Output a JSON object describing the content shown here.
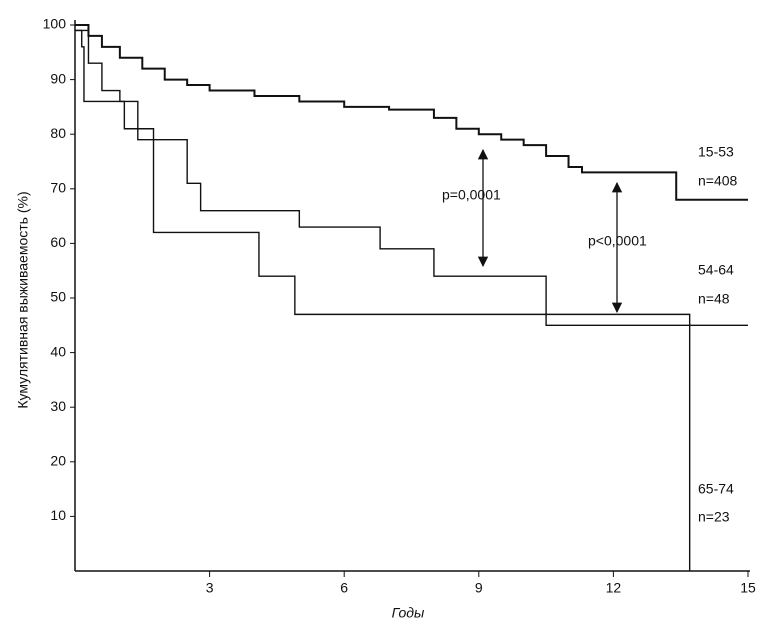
{
  "chart_data": {
    "type": "line",
    "step": true,
    "xlabel": "Годы",
    "ylabel": "Кумулятивная выживаемость (%)",
    "xlim": [
      0,
      15
    ],
    "xticks": [
      3,
      6,
      9,
      12,
      15
    ],
    "ylim": [
      0,
      100
    ],
    "yticks": [
      10,
      20,
      30,
      40,
      50,
      60,
      70,
      80,
      90,
      100
    ],
    "series": [
      {
        "name": "15-53",
        "color": "#111111",
        "x": [
          0,
          0.3,
          0.6,
          1,
          1.5,
          2,
          2.5,
          3,
          4,
          5,
          6,
          7,
          8,
          8.5,
          9,
          9.5,
          10,
          10.5,
          11,
          11.3,
          13.4,
          15
        ],
        "values": [
          100,
          98,
          96,
          94,
          92,
          90,
          89,
          88,
          87,
          86,
          85,
          84.5,
          83,
          81,
          80,
          79,
          78,
          76,
          74,
          73,
          68,
          68
        ]
      },
      {
        "name": "54-64",
        "color": "#111111",
        "x": [
          0,
          0.3,
          0.6,
          1,
          1.4,
          2.5,
          2.8,
          5,
          6.8,
          8,
          10.5,
          15
        ],
        "values": [
          99,
          93,
          88,
          86,
          79,
          71,
          66,
          63,
          59,
          54,
          45,
          45
        ]
      },
      {
        "name": "65-74",
        "color": "#111111",
        "x": [
          0,
          0.15,
          0.2,
          1.1,
          1.75,
          4.1,
          4.9,
          13.7
        ],
        "values": [
          99,
          96,
          86,
          81,
          62,
          54,
          47,
          0
        ]
      }
    ],
    "annotations": [
      "n=408",
      "n=48",
      "n=23",
      "p=0,0001",
      "p<0,0001"
    ]
  }
}
